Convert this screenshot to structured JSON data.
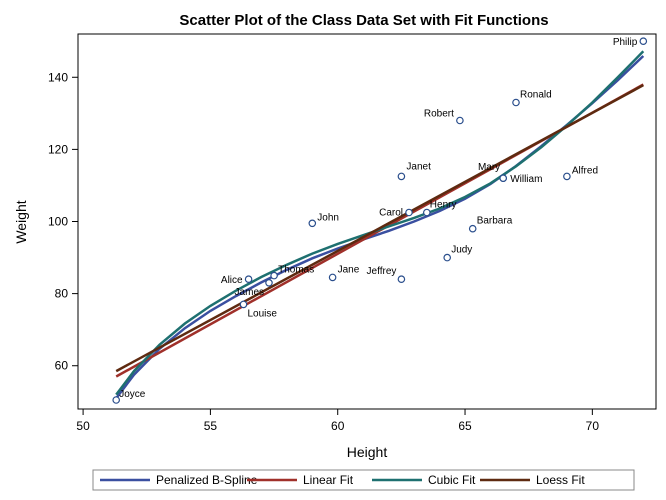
{
  "chart_data": {
    "type": "scatter",
    "title": "Scatter Plot of the Class Data Set with Fit Functions",
    "xlabel": "Height",
    "ylabel": "Weight",
    "xlim": [
      49.8,
      72.5
    ],
    "ylim": [
      48,
      152
    ],
    "xticks": [
      50,
      55,
      60,
      65,
      70
    ],
    "yticks": [
      60,
      80,
      100,
      120,
      140
    ],
    "grid": false,
    "legend_position": "bottom",
    "marker_color": "#2A4E8C",
    "points": [
      {
        "name": "Alfred",
        "x": 69.0,
        "y": 112.5
      },
      {
        "name": "Alice",
        "x": 56.5,
        "y": 84.0
      },
      {
        "name": "Barbara",
        "x": 65.3,
        "y": 98.0
      },
      {
        "name": "Carol",
        "x": 62.8,
        "y": 102.5
      },
      {
        "name": "Henry",
        "x": 63.5,
        "y": 102.5
      },
      {
        "name": "James",
        "x": 57.3,
        "y": 83.0
      },
      {
        "name": "Jane",
        "x": 59.8,
        "y": 84.5
      },
      {
        "name": "Janet",
        "x": 62.5,
        "y": 112.5
      },
      {
        "name": "Jeffrey",
        "x": 62.5,
        "y": 84.0
      },
      {
        "name": "John",
        "x": 59.0,
        "y": 99.5
      },
      {
        "name": "Joyce",
        "x": 51.3,
        "y": 50.5
      },
      {
        "name": "Judy",
        "x": 64.3,
        "y": 90.0
      },
      {
        "name": "Louise",
        "x": 56.3,
        "y": 77.0
      },
      {
        "name": "Mary",
        "x": 66.5,
        "y": 112.0
      },
      {
        "name": "Philip",
        "x": 72.0,
        "y": 150.0
      },
      {
        "name": "Robert",
        "x": 64.8,
        "y": 128.0
      },
      {
        "name": "Ronald",
        "x": 67.0,
        "y": 133.0
      },
      {
        "name": "Thomas",
        "x": 57.5,
        "y": 85.0
      },
      {
        "name": "William",
        "x": 66.5,
        "y": 112.0
      }
    ],
    "series": [
      {
        "name": "Penalized B-Spline",
        "color": "#3A4FA0",
        "x": [
          51.3,
          52,
          53,
          54,
          55,
          56,
          57,
          58,
          59,
          60,
          61,
          62,
          63,
          64,
          65,
          66,
          67,
          68,
          69,
          70,
          71,
          72
        ],
        "y": [
          51.0,
          57.5,
          64.7,
          70.4,
          75.2,
          79.3,
          83.1,
          86.6,
          89.8,
          92.5,
          95.0,
          97.4,
          100.0,
          102.9,
          106.3,
          110.4,
          115.4,
          120.9,
          126.8,
          132.8,
          139.2,
          145.9
        ]
      },
      {
        "name": "Linear Fit",
        "color": "#A0302A",
        "x": [
          51.3,
          72.0
        ],
        "y": [
          57.0,
          138.0
        ]
      },
      {
        "name": "Cubic Fit",
        "color": "#1E7070",
        "x": [
          51.3,
          52,
          53,
          54,
          55,
          56,
          57,
          58,
          59,
          60,
          61,
          62,
          63,
          64,
          65,
          66,
          67,
          68,
          69,
          70,
          71,
          72
        ],
        "y": [
          52.0,
          58.5,
          65.8,
          71.7,
          76.6,
          80.8,
          84.6,
          88.0,
          91.1,
          93.8,
          96.2,
          98.6,
          101.0,
          103.6,
          106.8,
          110.6,
          115.3,
          120.6,
          126.6,
          133.0,
          140.0,
          147.2
        ]
      },
      {
        "name": "Loess Fit",
        "color": "#5E2A10",
        "x": [
          51.3,
          72.0
        ],
        "y": [
          58.5,
          137.8
        ]
      }
    ]
  }
}
